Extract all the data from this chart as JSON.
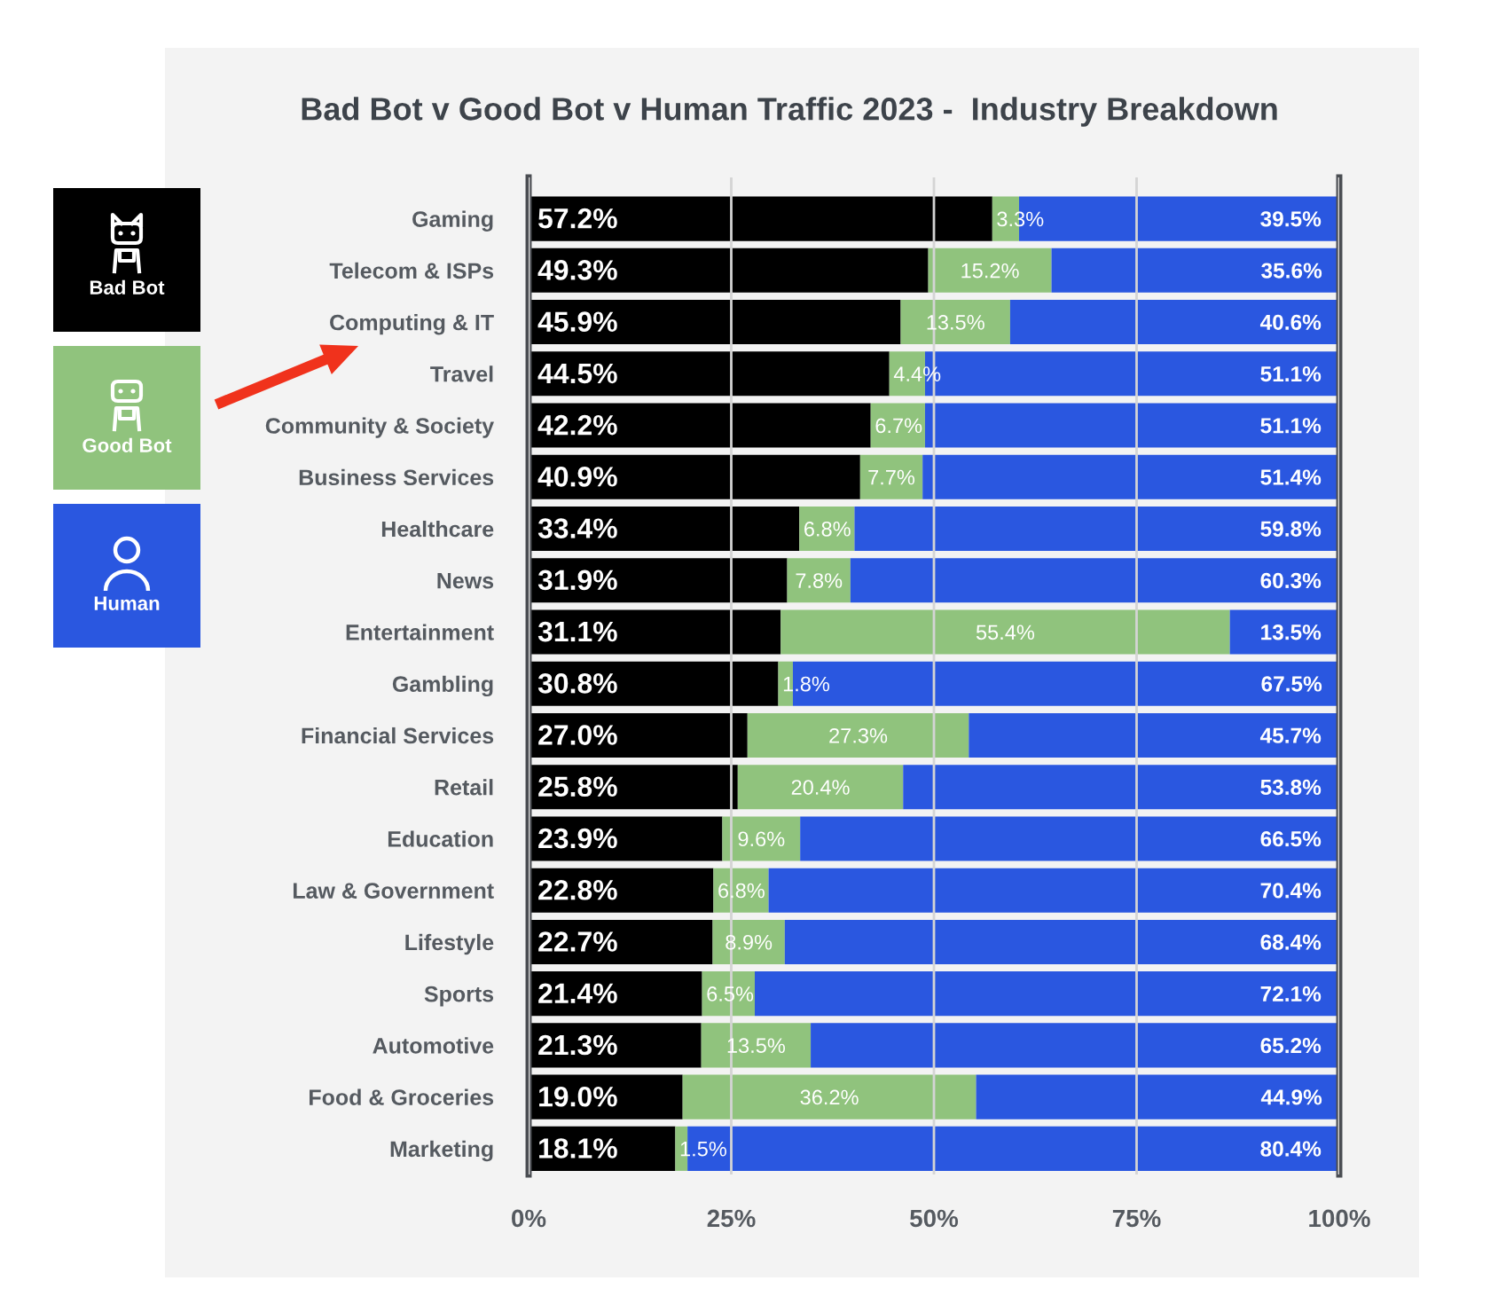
{
  "chart_data": {
    "type": "bar",
    "orientation": "horizontal",
    "stacked": true,
    "title": "Bad Bot v Good Bot v Human Traffic 2023 -  Industry Breakdown",
    "categories": [
      "Gaming",
      "Telecom & ISPs",
      "Computing & IT",
      "Travel",
      "Community & Society",
      "Business Services",
      "Healthcare",
      "News",
      "Entertainment",
      "Gambling",
      "Financial Services",
      "Retail",
      "Education",
      "Law & Government",
      "Lifestyle",
      "Sports",
      "Automotive",
      "Food & Groceries",
      "Marketing"
    ],
    "series": [
      {
        "name": "Bad Bot",
        "color": "#000000",
        "values": [
          57.2,
          49.3,
          45.9,
          44.5,
          42.2,
          40.9,
          33.4,
          31.9,
          31.1,
          30.8,
          27.0,
          25.8,
          23.9,
          22.8,
          22.7,
          21.4,
          21.3,
          19.0,
          18.1
        ],
        "value_labels": [
          "57.2%",
          "49.3%",
          "45.9%",
          "44.5%",
          "42.2%",
          "40.9%",
          "33.4%",
          "31.9%",
          "31.1%",
          "30.8%",
          "27.0%",
          "25.8%",
          "23.9%",
          "22.8%",
          "22.7%",
          "21.4%",
          "21.3%",
          "19.0%",
          "18.1%"
        ]
      },
      {
        "name": "Good Bot",
        "color": "#90c37d",
        "values": [
          3.3,
          15.2,
          13.5,
          4.4,
          6.7,
          7.7,
          6.8,
          7.8,
          55.4,
          1.8,
          27.3,
          20.4,
          9.6,
          6.8,
          8.9,
          6.5,
          13.5,
          36.2,
          1.5
        ],
        "value_labels": [
          "3.3%",
          "15.2%",
          "13.5%",
          "4.4%",
          "6.7%",
          "7.7%",
          "6.8%",
          "7.8%",
          "55.4%",
          "1.8%",
          "27.3%",
          "20.4%",
          "9.6%",
          "6.8%",
          "8.9%",
          "6.5%",
          "13.5%",
          "36.2%",
          "1.5%"
        ]
      },
      {
        "name": "Human",
        "color": "#2a57e0",
        "values": [
          39.5,
          35.6,
          40.6,
          51.1,
          51.1,
          51.4,
          59.8,
          60.3,
          13.5,
          67.5,
          45.7,
          53.8,
          66.5,
          70.4,
          68.4,
          72.1,
          65.2,
          44.9,
          80.4
        ],
        "value_labels": [
          "39.5%",
          "35.6%",
          "40.6%",
          "51.1%",
          "51.1%",
          "51.4%",
          "59.8%",
          "60.3%",
          "13.5%",
          "67.5%",
          "45.7%",
          "53.8%",
          "66.5%",
          "70.4%",
          "68.4%",
          "72.1%",
          "65.2%",
          "44.9%",
          "80.4%"
        ]
      }
    ],
    "xlim": [
      0,
      100
    ],
    "xticks": [
      {
        "value": 0,
        "label": "0%"
      },
      {
        "value": 25,
        "label": "25%"
      },
      {
        "value": 50,
        "label": "50%"
      },
      {
        "value": 75,
        "label": "75%"
      },
      {
        "value": 100,
        "label": "100%"
      }
    ],
    "grid": "x",
    "legend": "left"
  }
}
